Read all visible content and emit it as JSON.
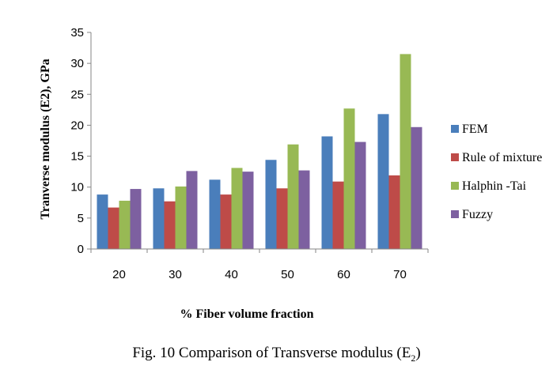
{
  "chart_data": {
    "type": "bar",
    "title": "",
    "xlabel": "% Fiber volume fraction",
    "ylabel": "Tranverse modulus (E2), GPa",
    "categories": [
      "20",
      "30",
      "40",
      "50",
      "60",
      "70"
    ],
    "ylim": [
      0,
      35
    ],
    "yticks": [
      "0",
      "5",
      "10",
      "15",
      "20",
      "25",
      "30",
      "35"
    ],
    "grid": false,
    "legend_position": "right",
    "series": [
      {
        "name": "FEM",
        "color": "#4A7EBB",
        "values": [
          8.8,
          9.8,
          11.2,
          14.4,
          18.2,
          21.8
        ]
      },
      {
        "name": "Rule of mixture",
        "color": "#BE4B48",
        "values": [
          6.7,
          7.7,
          8.8,
          9.8,
          10.9,
          11.9
        ]
      },
      {
        "name": "Halphin -Tai",
        "color": "#98B954",
        "values": [
          7.8,
          10.1,
          13.1,
          16.9,
          22.7,
          31.5
        ]
      },
      {
        "name": "Fuzzy",
        "color": "#7D60A0",
        "values": [
          9.7,
          12.6,
          12.5,
          12.7,
          17.3,
          19.7
        ]
      }
    ]
  },
  "caption": {
    "text": "Fig. 10 Comparison of Transverse modulus (E",
    "subscript": "2",
    "close": ")"
  }
}
